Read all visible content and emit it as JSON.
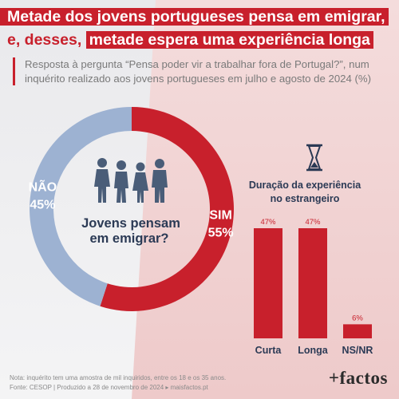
{
  "headline": {
    "line1": "Metade dos jovens portugueses pensa em emigrar,",
    "line2_prefix": "e, desses,",
    "line2_highlight": "metade espera uma experiência longa"
  },
  "subtitle": "Resposta à pergunta “Pensa poder vir a trabalhar fora de Portugal?”, num inquérito realizado aos jovens portugueses em julho e agosto de 2024 (%)",
  "colors": {
    "red": "#c8202c",
    "blue": "#9db2d2",
    "silhouette": "#4a5d78",
    "text_dark": "#2b3a55"
  },
  "chart_data": [
    {
      "type": "pie",
      "title": "Jovens pensam em emigrar?",
      "categories": [
        "SIM",
        "NÃO"
      ],
      "values": [
        55,
        45
      ],
      "labels": [
        "55%",
        "45%"
      ]
    },
    {
      "type": "bar",
      "title": "Duração da experiência no estrangeiro",
      "categories": [
        "Curta",
        "Longa",
        "NS/NR"
      ],
      "values": [
        47,
        47,
        6
      ],
      "labels": [
        "47%",
        "47%",
        "6%"
      ],
      "ylim": [
        0,
        47
      ]
    }
  ],
  "icons": [
    "hourglass-icon",
    "people-silhouettes-icon"
  ],
  "footnote": {
    "line1": "Nota: inquérito tem uma amostra de mil inquiridos, entre os 18 e os 35 anos.",
    "line2": "Fonte: CESOP | Produzido a 28 de novembro de 2024 ▸ maisfactos.pt"
  },
  "logo": "+factos"
}
